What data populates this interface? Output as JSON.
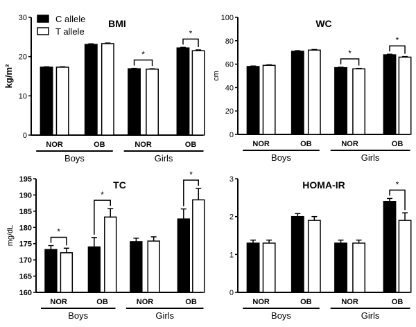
{
  "chart_data": [
    {
      "type": "bar",
      "title": "BMI",
      "ylabel": "kg/m²",
      "ylim": [
        0,
        30
      ],
      "yticks": [
        0,
        10,
        20,
        30
      ],
      "categories": [
        "NOR",
        "OB",
        "NOR",
        "OB"
      ],
      "groups": [
        "Boys",
        "Girls"
      ],
      "series": [
        {
          "name": "C allele",
          "color": "#000000",
          "values": [
            17.3,
            23.1,
            16.9,
            22.2
          ],
          "errors": [
            0.1,
            0.15,
            0.1,
            0.15
          ]
        },
        {
          "name": "T allele",
          "color": "#ffffff",
          "values": [
            17.3,
            23.3,
            16.8,
            21.5
          ],
          "errors": [
            0.1,
            0.15,
            0.1,
            0.2
          ]
        }
      ],
      "significance": [
        2,
        3
      ],
      "legend": "top-left"
    },
    {
      "type": "bar",
      "title": "WC",
      "ylabel": "cm",
      "ylim": [
        0,
        100
      ],
      "yticks": [
        0,
        20,
        40,
        60,
        80,
        100
      ],
      "categories": [
        "NOR",
        "OB",
        "NOR",
        "OB"
      ],
      "groups": [
        "Boys",
        "Girls"
      ],
      "series": [
        {
          "name": "C allele",
          "color": "#000000",
          "values": [
            58,
            71,
            57,
            68
          ],
          "errors": [
            0.4,
            0.5,
            0.4,
            0.5
          ]
        },
        {
          "name": "T allele",
          "color": "#ffffff",
          "values": [
            59,
            72,
            56,
            66
          ],
          "errors": [
            0.4,
            0.5,
            0.4,
            0.5
          ]
        }
      ],
      "significance": [
        2,
        3
      ]
    },
    {
      "type": "bar",
      "title": "TC",
      "ylabel": "mg/dL",
      "ylim": [
        160,
        195
      ],
      "yticks": [
        160,
        165,
        170,
        175,
        180,
        185,
        190,
        195
      ],
      "categories": [
        "NOR",
        "OB",
        "NOR",
        "OB"
      ],
      "groups": [
        "Boys",
        "Girls"
      ],
      "series": [
        {
          "name": "C allele",
          "color": "#000000",
          "values": [
            173.2,
            174.0,
            175.6,
            182.6
          ],
          "errors": [
            1.2,
            2.9,
            1.1,
            3.1
          ]
        },
        {
          "name": "T allele",
          "color": "#ffffff",
          "values": [
            172.2,
            183.2,
            175.8,
            188.5
          ],
          "errors": [
            1.4,
            2.6,
            1.3,
            3.5
          ]
        }
      ],
      "significance": [
        0,
        1,
        3
      ]
    },
    {
      "type": "bar",
      "title": "HOMA-IR",
      "ylabel": "",
      "ylim": [
        0,
        3
      ],
      "yticks": [
        0,
        1,
        2,
        3
      ],
      "categories": [
        "NOR",
        "OB",
        "NOR",
        "OB"
      ],
      "groups": [
        "Boys",
        "Girls"
      ],
      "series": [
        {
          "name": "C allele",
          "color": "#000000",
          "values": [
            1.3,
            2.0,
            1.3,
            2.4
          ],
          "errors": [
            0.08,
            0.08,
            0.08,
            0.08
          ]
        },
        {
          "name": "T allele",
          "color": "#ffffff",
          "values": [
            1.3,
            1.9,
            1.3,
            1.9
          ],
          "errors": [
            0.08,
            0.1,
            0.08,
            0.2
          ]
        }
      ],
      "significance": [
        3
      ]
    }
  ],
  "sig_mark": "*"
}
